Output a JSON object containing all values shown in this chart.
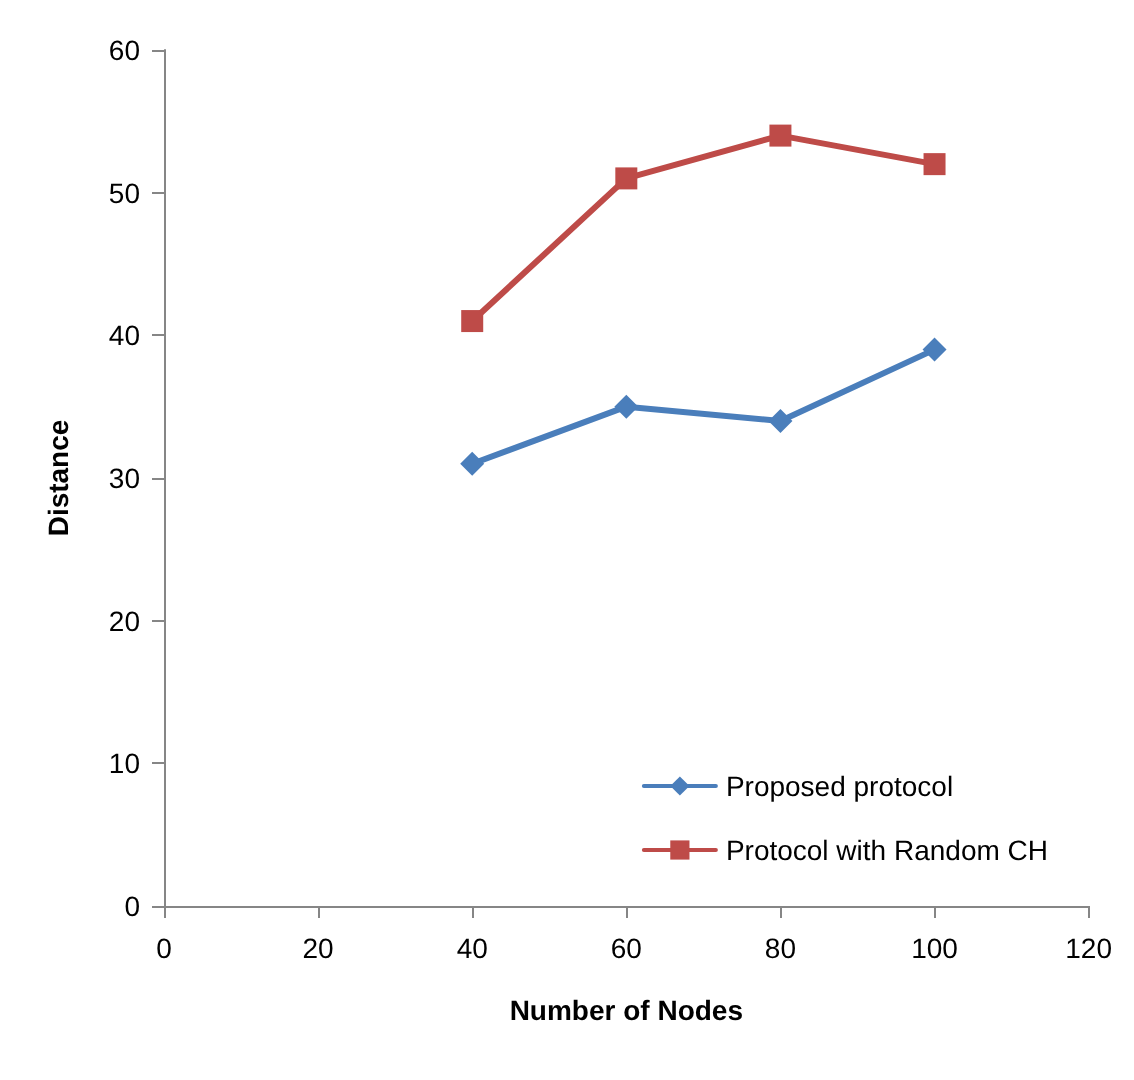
{
  "chart_data": {
    "type": "line",
    "xlabel": "Number of Nodes",
    "ylabel": "Distance",
    "x": [
      40,
      60,
      80,
      100
    ],
    "series": [
      {
        "name": "Proposed protocol",
        "color": "#4a7ebb",
        "values": [
          31,
          35,
          34,
          39
        ],
        "marker": "diamond"
      },
      {
        "name": "Protocol with Random CH",
        "color": "#be4b48",
        "values": [
          41,
          51,
          54,
          52
        ],
        "marker": "square"
      }
    ],
    "xlim": [
      0,
      120
    ],
    "xticks": [
      0,
      20,
      40,
      60,
      80,
      100,
      120
    ],
    "ylim": [
      0,
      60
    ],
    "yticks": [
      0,
      10,
      20,
      30,
      40,
      50,
      60
    ],
    "grid": false,
    "legend": "bottom right",
    "line_style": "solid"
  }
}
